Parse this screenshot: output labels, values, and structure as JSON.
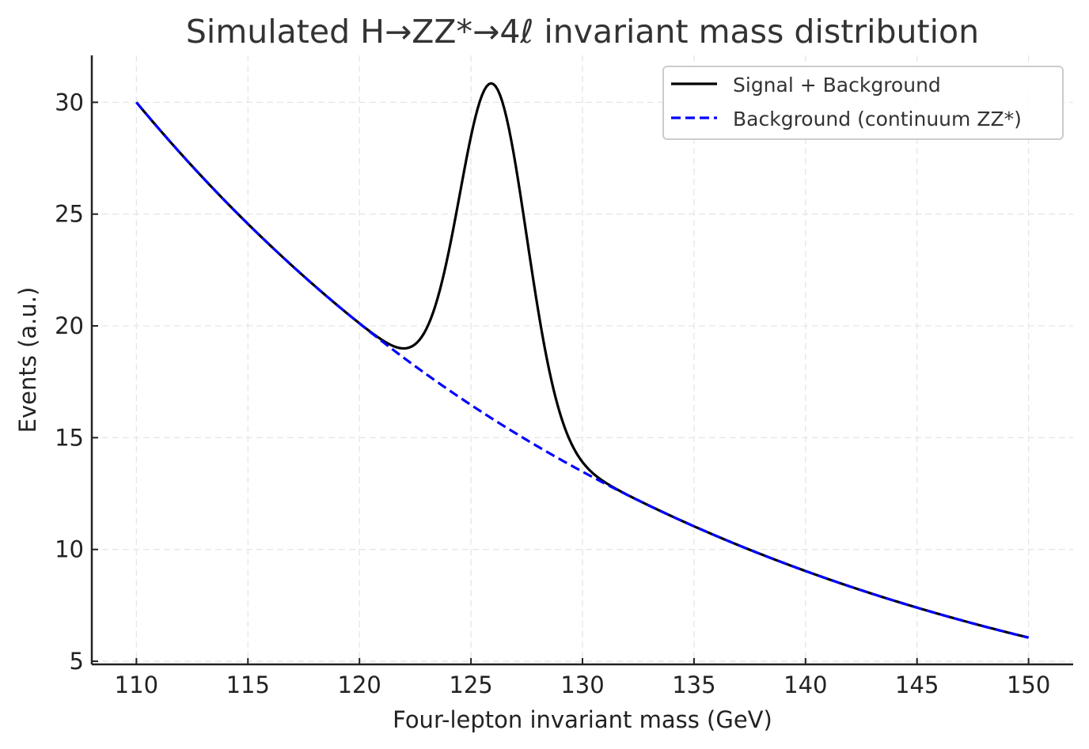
{
  "chart_data": {
    "type": "line",
    "title": "Simulated H→ZZ*→4ℓ invariant mass distribution",
    "xlabel": "Four-lepton invariant mass (GeV)",
    "ylabel": "Events (a.u.)",
    "xlim": [
      108.0,
      152.0
    ],
    "ylim": [
      4.86,
      32.1
    ],
    "xticks": [
      110,
      115,
      120,
      125,
      130,
      135,
      140,
      145,
      150
    ],
    "yticks": [
      5,
      10,
      15,
      20,
      25,
      30
    ],
    "grid": true,
    "legend_position": "top-right",
    "series": [
      {
        "name": "Signal + Background",
        "color": "#000000",
        "style": "solid",
        "x": [
          110,
          112,
          114,
          116,
          118,
          120,
          121,
          122,
          123,
          124,
          124.5,
          125,
          125.5,
          126,
          126.5,
          127,
          127.5,
          128,
          129,
          130,
          131,
          132,
          134,
          136,
          138,
          140,
          142,
          144,
          146,
          148,
          150
        ],
        "y": [
          30.0,
          27.69,
          25.56,
          23.6,
          21.78,
          20.11,
          19.35,
          19.0,
          19.47,
          23.28,
          25.94,
          28.53,
          30.31,
          30.72,
          29.58,
          27.11,
          23.94,
          20.77,
          16.08,
          13.91,
          12.88,
          12.39,
          11.49,
          10.6,
          9.76,
          9.04,
          8.35,
          7.7,
          7.09,
          6.55,
          6.05
        ]
      },
      {
        "name": "Background (continuum ZZ*)",
        "color": "#0000ff",
        "style": "dashed",
        "x": [
          110,
          112,
          114,
          116,
          118,
          120,
          122,
          124,
          126,
          128,
          130,
          132,
          134,
          136,
          138,
          140,
          142,
          144,
          146,
          148,
          150
        ],
        "y": [
          30.0,
          27.69,
          25.56,
          23.6,
          21.78,
          20.11,
          18.56,
          17.13,
          15.81,
          14.6,
          13.48,
          12.44,
          11.49,
          10.6,
          9.79,
          9.04,
          8.34,
          7.7,
          7.11,
          6.56,
          6.05
        ]
      }
    ],
    "model": {
      "background": "30 * exp(-0.04 * (m - 110))",
      "signal": "15 * exp(-(m - 126)^2 / (2 * 1.5^2))"
    }
  }
}
